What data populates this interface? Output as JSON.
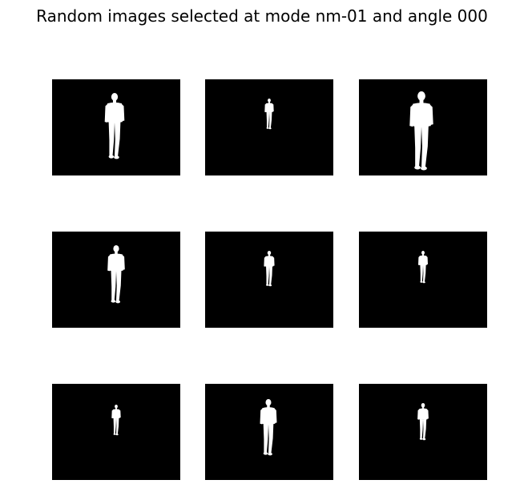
{
  "figure": {
    "title": "Random images selected at mode nm-01 and angle 000",
    "background_color": "#000000",
    "silhouette_color": "#ffffff"
  },
  "grid": {
    "rows": 3,
    "cols": 3
  },
  "panels": [
    {
      "subject": "silhouette-large"
    },
    {
      "subject": "silhouette-small"
    },
    {
      "subject": "silhouette-large"
    },
    {
      "subject": "silhouette-medium"
    },
    {
      "subject": "silhouette-small"
    },
    {
      "subject": "silhouette-small"
    },
    {
      "subject": "silhouette-small"
    },
    {
      "subject": "silhouette-medium"
    },
    {
      "subject": "silhouette-small"
    }
  ]
}
